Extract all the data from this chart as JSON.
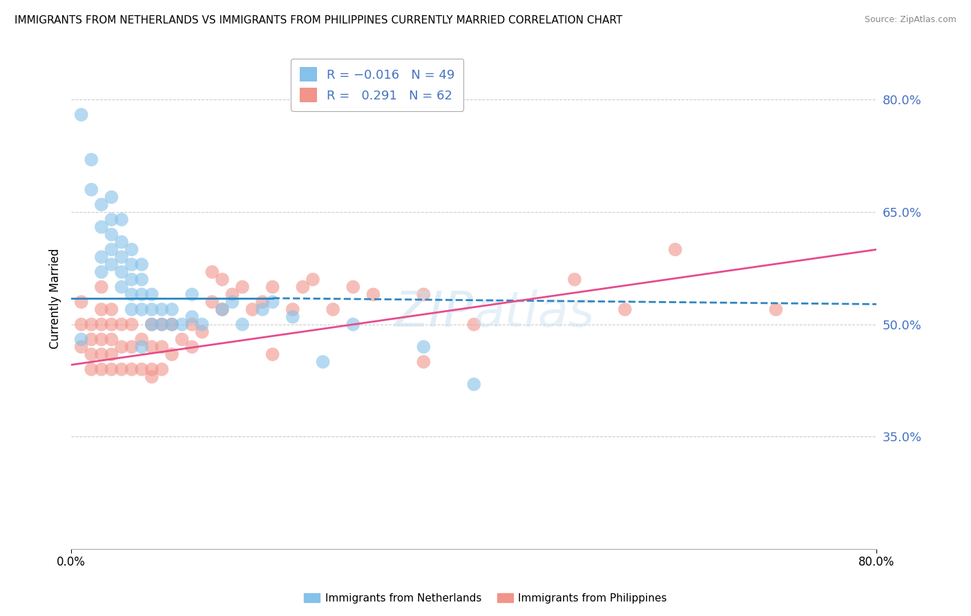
{
  "title": "IMMIGRANTS FROM NETHERLANDS VS IMMIGRANTS FROM PHILIPPINES CURRENTLY MARRIED CORRELATION CHART",
  "source": "Source: ZipAtlas.com",
  "ylabel": "Currently Married",
  "xlim": [
    0.0,
    0.8
  ],
  "ylim": [
    0.2,
    0.87
  ],
  "yticks": [
    0.35,
    0.5,
    0.65,
    0.8
  ],
  "ytick_labels": [
    "35.0%",
    "50.0%",
    "65.0%",
    "80.0%"
  ],
  "xtick_labels": [
    "0.0%",
    "80.0%"
  ],
  "legend_line1": "R = -0.016   N = 49",
  "legend_line2": "R =  0.291   N = 62",
  "color_blue": "#85c1e9",
  "color_pink": "#f1948a",
  "color_blue_line": "#2e86c1",
  "color_pink_line": "#e74c8b",
  "color_axis_label": "#4472c4",
  "background": "#ffffff",
  "grid_color": "#cccccc",
  "watermark": "ZIPatlas",
  "nl_x": [
    0.01,
    0.02,
    0.02,
    0.03,
    0.03,
    0.03,
    0.03,
    0.04,
    0.04,
    0.04,
    0.04,
    0.04,
    0.05,
    0.05,
    0.05,
    0.05,
    0.05,
    0.06,
    0.06,
    0.06,
    0.06,
    0.06,
    0.07,
    0.07,
    0.07,
    0.07,
    0.08,
    0.08,
    0.08,
    0.09,
    0.09,
    0.1,
    0.1,
    0.11,
    0.12,
    0.13,
    0.15,
    0.16,
    0.17,
    0.19,
    0.2,
    0.22,
    0.28,
    0.35,
    0.01,
    0.07,
    0.12,
    0.25,
    0.4
  ],
  "nl_y": [
    0.78,
    0.68,
    0.72,
    0.57,
    0.59,
    0.63,
    0.66,
    0.58,
    0.6,
    0.62,
    0.64,
    0.67,
    0.55,
    0.57,
    0.59,
    0.61,
    0.64,
    0.52,
    0.54,
    0.56,
    0.58,
    0.6,
    0.52,
    0.54,
    0.56,
    0.58,
    0.5,
    0.52,
    0.54,
    0.5,
    0.52,
    0.5,
    0.52,
    0.5,
    0.51,
    0.5,
    0.52,
    0.53,
    0.5,
    0.52,
    0.53,
    0.51,
    0.5,
    0.47,
    0.48,
    0.47,
    0.54,
    0.45,
    0.42
  ],
  "ph_x": [
    0.01,
    0.01,
    0.01,
    0.02,
    0.02,
    0.02,
    0.02,
    0.03,
    0.03,
    0.03,
    0.03,
    0.03,
    0.03,
    0.04,
    0.04,
    0.04,
    0.04,
    0.04,
    0.05,
    0.05,
    0.05,
    0.06,
    0.06,
    0.06,
    0.07,
    0.07,
    0.08,
    0.08,
    0.08,
    0.09,
    0.09,
    0.09,
    0.1,
    0.1,
    0.11,
    0.12,
    0.13,
    0.14,
    0.14,
    0.15,
    0.15,
    0.16,
    0.17,
    0.18,
    0.19,
    0.2,
    0.22,
    0.23,
    0.24,
    0.26,
    0.28,
    0.3,
    0.35,
    0.4,
    0.5,
    0.55,
    0.6,
    0.7,
    0.35,
    0.2,
    0.12,
    0.08
  ],
  "ph_y": [
    0.47,
    0.5,
    0.53,
    0.44,
    0.46,
    0.48,
    0.5,
    0.44,
    0.46,
    0.48,
    0.5,
    0.52,
    0.55,
    0.44,
    0.46,
    0.48,
    0.5,
    0.52,
    0.44,
    0.47,
    0.5,
    0.44,
    0.47,
    0.5,
    0.44,
    0.48,
    0.44,
    0.47,
    0.5,
    0.44,
    0.47,
    0.5,
    0.46,
    0.5,
    0.48,
    0.5,
    0.49,
    0.53,
    0.57,
    0.52,
    0.56,
    0.54,
    0.55,
    0.52,
    0.53,
    0.55,
    0.52,
    0.55,
    0.56,
    0.52,
    0.55,
    0.54,
    0.54,
    0.5,
    0.56,
    0.52,
    0.6,
    0.52,
    0.45,
    0.46,
    0.47,
    0.43
  ],
  "nl_line_x": [
    0.0,
    0.2,
    0.8
  ],
  "nl_line_y": [
    0.535,
    0.535,
    0.527
  ],
  "ph_line_x": [
    0.0,
    0.8
  ],
  "ph_line_y": [
    0.446,
    0.6
  ]
}
